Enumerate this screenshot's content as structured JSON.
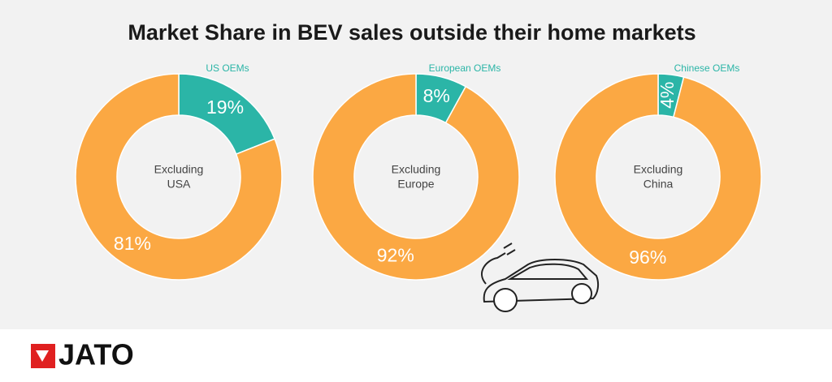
{
  "title": "Market Share in BEV sales outside their home markets",
  "chart_data": [
    {
      "type": "donut",
      "center_label": [
        "Excluding",
        "USA"
      ],
      "categories": [
        "US OEMs",
        null
      ],
      "values": [
        19,
        81
      ],
      "value_labels": [
        "19%",
        "81%"
      ],
      "colors": [
        "#2bb5a7",
        "#fba843"
      ]
    },
    {
      "type": "donut",
      "center_label": [
        "Excluding",
        "Europe"
      ],
      "categories": [
        "European OEMs",
        null
      ],
      "values": [
        8,
        92
      ],
      "value_labels": [
        "8%",
        "92%"
      ],
      "colors": [
        "#2bb5a7",
        "#fba843"
      ]
    },
    {
      "type": "donut",
      "center_label": [
        "Excluding",
        "China"
      ],
      "categories": [
        "Chinese OEMs",
        null
      ],
      "values": [
        4,
        96
      ],
      "value_labels": [
        "4%",
        "96%"
      ],
      "colors": [
        "#2bb5a7",
        "#fba843"
      ]
    }
  ],
  "footer": {
    "logo": "JATO"
  }
}
